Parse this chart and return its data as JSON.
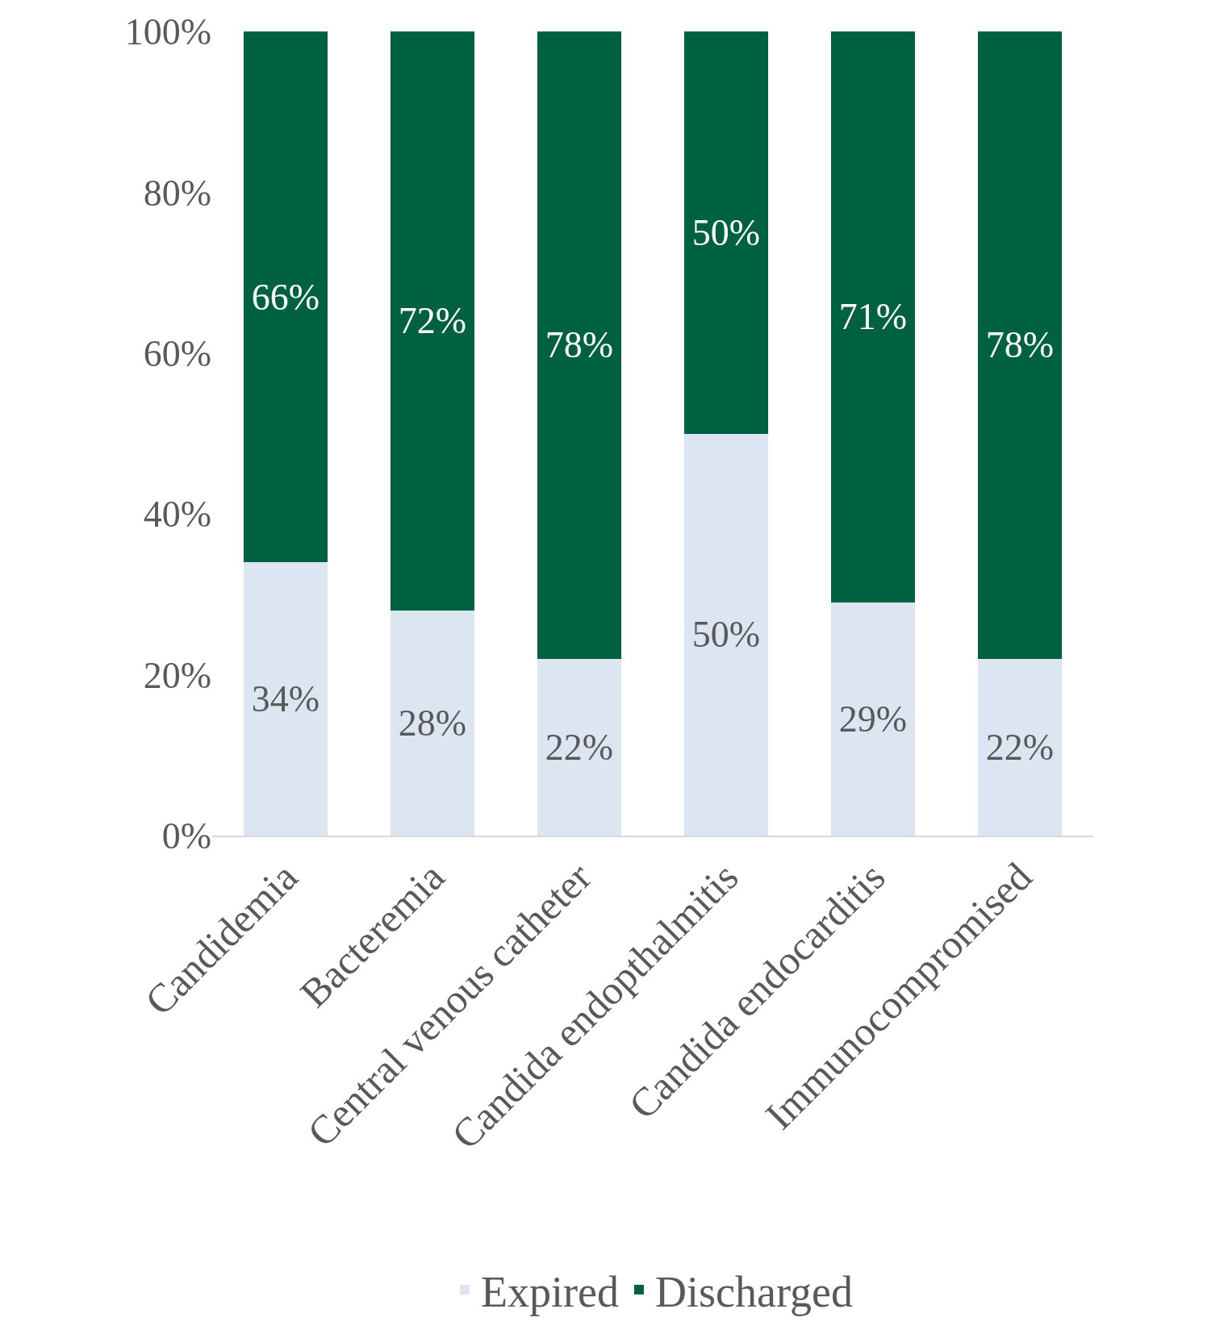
{
  "chart_data": {
    "type": "bar",
    "stacked": true,
    "categories": [
      "Candidemia",
      "Bacteremia",
      "Central venous catheter",
      "Candida endopthalmitis",
      "Candida endocarditis",
      "Immunocompromised"
    ],
    "series": [
      {
        "name": "Expired",
        "color": "#dce6f2",
        "values": [
          34,
          28,
          22,
          50,
          29,
          22
        ],
        "value_labels": [
          "34%",
          "28%",
          "22%",
          "50%",
          "29%",
          "22%"
        ]
      },
      {
        "name": "Discharged",
        "color": "#006140",
        "values": [
          66,
          72,
          78,
          50,
          71,
          78
        ],
        "value_labels": [
          "66%",
          "72%",
          "78%",
          "50%",
          "71%",
          "78%"
        ]
      }
    ],
    "ylim": [
      0,
      100
    ],
    "yticks": [
      {
        "value": 0,
        "label": "0%"
      },
      {
        "value": 20,
        "label": "20%"
      },
      {
        "value": 40,
        "label": "40%"
      },
      {
        "value": 60,
        "label": "60%"
      },
      {
        "value": 80,
        "label": "80%"
      },
      {
        "value": 100,
        "label": "100%"
      }
    ],
    "legend": "bottom"
  }
}
